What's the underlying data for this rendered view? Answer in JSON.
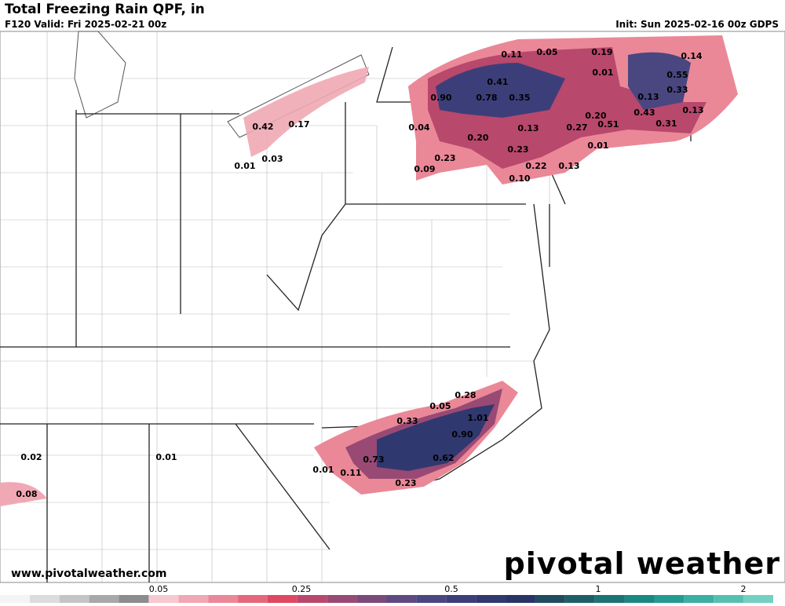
{
  "header": {
    "title": "Total Freezing Rain QPF, in",
    "subtitle": "F120 Valid: Fri 2025-02-21 00z",
    "init": "Init: Sun 2025-02-16 00z GDPS"
  },
  "map": {
    "labels": [
      "0.11",
      "0.05",
      "0.19",
      "0.14",
      "0.01",
      "0.55",
      "0.41",
      "0.33",
      "0.90",
      "0.78",
      "0.35",
      "0.13",
      "0.13",
      "0.43",
      "0.20",
      "0.51",
      "0.31",
      "0.27",
      "0.04",
      "0.13",
      "0.42",
      "0.17",
      "0.20",
      "0.01",
      "0.23",
      "0.03",
      "0.23",
      "0.01",
      "0.22",
      "0.13",
      "0.09",
      "0.10",
      "0.28",
      "0.05",
      "1.01",
      "0.33",
      "0.90",
      "0.02",
      "0.01",
      "0.73",
      "0.62",
      "0.01",
      "0.11",
      "0.08",
      "0.23"
    ]
  },
  "footer": {
    "url": "www.pivotalweather.com",
    "logo": "pivotal weather"
  },
  "legend": {
    "tick_labels": [
      "0.05",
      "0.25",
      "0.5",
      "1",
      "2"
    ],
    "colors": [
      "#f4f4f4",
      "#dcdcdc",
      "#c4c4c4",
      "#a8a8a8",
      "#8c8c8c",
      "#f6c9d0",
      "#f0a8b4",
      "#ea8898",
      "#e4687c",
      "#de4860",
      "#b8486c",
      "#984a74",
      "#7a4a7a",
      "#5e4a80",
      "#4a4680",
      "#3c3e7a",
      "#303870",
      "#283366",
      "#1f4c5e",
      "#1d5f68",
      "#1b7374",
      "#1a8780",
      "#249a90",
      "#3aaeA0",
      "#56c0b0",
      "#74d0c0"
    ]
  }
}
